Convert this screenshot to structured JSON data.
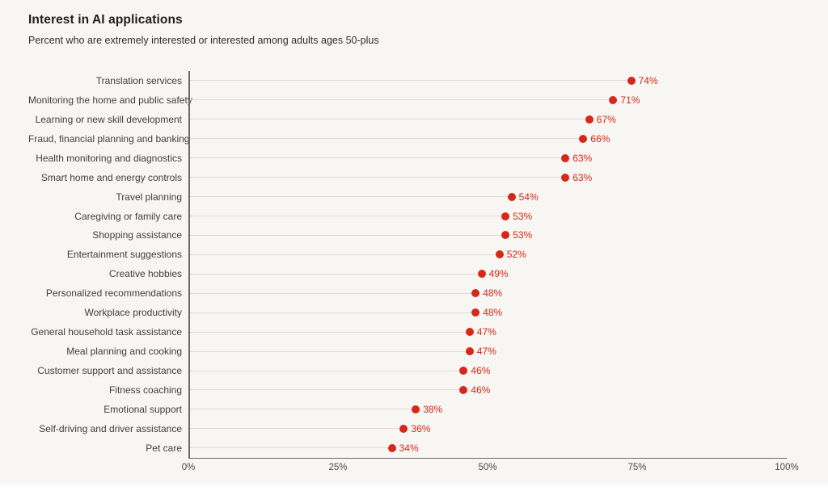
{
  "header": {
    "title": "Interest in AI applications",
    "subtitle": "Percent who are extremely interested or interested among adults ages 50-plus"
  },
  "colors": {
    "panel_background": "#f8f6f3",
    "dot": "#d62718",
    "value_label": "#d62718",
    "stem": "#dedbd7",
    "axis": "#6e6a66",
    "category_label": "#3f3f3f"
  },
  "chart_data": {
    "type": "scatter",
    "variant": "horizontal-dot-lollipop",
    "title": "Interest in AI applications",
    "subtitle": "Percent who are extremely interested or interested among adults ages 50-plus",
    "categories": [
      "Translation services",
      "Monitoring the home and public safety",
      "Learning or new skill development",
      "Fraud, financial planning and banking",
      "Health monitoring and diagnostics",
      "Smart home and energy controls",
      "Travel planning",
      "Caregiving or family care",
      "Shopping assistance",
      "Entertainment suggestions",
      "Creative hobbies",
      "Personalized recommendations",
      "Workplace productivity",
      "General household task assistance",
      "Meal planning and cooking",
      "Customer support and assistance",
      "Fitness coaching",
      "Emotional support",
      "Self-driving and driver assistance",
      "Pet care"
    ],
    "values": [
      74,
      71,
      67,
      66,
      63,
      63,
      54,
      53,
      53,
      52,
      49,
      48,
      48,
      47,
      47,
      46,
      46,
      38,
      36,
      34
    ],
    "value_labels": [
      "74%",
      "71%",
      "67%",
      "66%",
      "63%",
      "63%",
      "54%",
      "53%",
      "53%",
      "52%",
      "49%",
      "48%",
      "48%",
      "47%",
      "47%",
      "46%",
      "46%",
      "38%",
      "36%",
      "34%"
    ],
    "xlabel": "",
    "ylabel": "",
    "xlim": [
      0,
      100
    ],
    "x_tick_values": [
      0,
      25,
      50,
      75,
      100
    ],
    "x_tick_labels": [
      "0%",
      "25%",
      "50%",
      "75%",
      "100%"
    ],
    "grid": "stem lines from y-axis to each dot only",
    "legend": "none"
  }
}
